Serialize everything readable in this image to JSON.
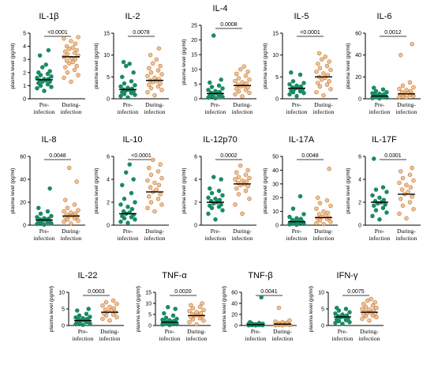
{
  "figure": {
    "colors": {
      "pre": "#1a8a66",
      "during": "#eab98c",
      "during_edge": "#cc7f35",
      "axis": "#000000"
    }
  },
  "chart_data": [
    {
      "type": "scatter",
      "title": "IL-1β",
      "ylabel": "plasma level (pg/ml)",
      "ylim": [
        0,
        5
      ],
      "yticks": [
        "0",
        "1",
        "2",
        "3",
        "4",
        "5"
      ],
      "categories": [
        "Pre-\ninfection",
        "During-\ninfection"
      ],
      "p_value": "<0.0001",
      "median": [
        1.45,
        3.2
      ],
      "series": [
        {
          "values": [
            0.6,
            0.8,
            0.9,
            1.0,
            1.1,
            1.2,
            1.3,
            1.3,
            1.4,
            1.4,
            1.5,
            1.5,
            1.6,
            1.7,
            1.8,
            1.9,
            2.0,
            2.1,
            2.4,
            2.6,
            3.3,
            3.7
          ]
        },
        {
          "values": [
            1.3,
            1.6,
            1.8,
            2.0,
            2.2,
            2.4,
            2.5,
            2.7,
            2.8,
            2.9,
            3.0,
            3.1,
            3.2,
            3.3,
            3.4,
            3.5,
            3.6,
            3.7,
            3.8,
            3.9,
            4.0,
            4.2,
            4.4,
            4.6,
            4.7
          ]
        }
      ]
    },
    {
      "type": "scatter",
      "title": "IL-2",
      "ylabel": "plasma level (pg/ml)",
      "ylim": [
        0,
        15
      ],
      "yticks": [
        "0",
        "5",
        "10",
        "15"
      ],
      "categories": [
        "Pre-\ninfection",
        "During-\ninfection"
      ],
      "p_value": "0.0078",
      "median": [
        2.1,
        4.2
      ],
      "series": [
        {
          "values": [
            0.3,
            0.6,
            0.9,
            1.1,
            1.3,
            1.5,
            1.7,
            1.9,
            2.0,
            2.1,
            2.3,
            2.5,
            2.8,
            3.1,
            3.5,
            4.0,
            5.0,
            6.0,
            7.5,
            8.0,
            8.4
          ]
        },
        {
          "values": [
            0.8,
            1.5,
            2.0,
            2.4,
            2.8,
            3.2,
            3.5,
            3.8,
            4.0,
            4.2,
            4.5,
            4.8,
            5.2,
            5.6,
            6.0,
            6.5,
            7.0,
            7.5,
            8.1,
            9.0,
            10.0,
            11.5
          ]
        }
      ]
    },
    {
      "type": "scatter",
      "title": "IL-4",
      "ylabel": "plasma level (pg/ml)",
      "ylim": [
        0,
        25
      ],
      "yticks": [
        "0",
        "5",
        "10",
        "15",
        "20",
        "25"
      ],
      "categories": [
        "Pre-\ninfection",
        "During-\ninfection"
      ],
      "p_value": "0.0008",
      "median": [
        1.8,
        4.5
      ],
      "series": [
        {
          "values": [
            0.2,
            0.4,
            0.6,
            0.8,
            1.0,
            1.2,
            1.4,
            1.6,
            1.8,
            2.0,
            2.3,
            2.6,
            3.0,
            3.5,
            4.0,
            4.5,
            5.5,
            6.5,
            21.5
          ]
        },
        {
          "values": [
            0.8,
            1.5,
            2.0,
            2.5,
            3.0,
            3.4,
            3.8,
            4.2,
            4.5,
            4.8,
            5.2,
            5.6,
            6.0,
            6.5,
            7.0,
            7.8,
            8.5,
            9.2,
            10.0,
            11.0
          ]
        }
      ]
    },
    {
      "type": "scatter",
      "title": "IL-5",
      "ylabel": "plasma level (pg/ml)",
      "ylim": [
        0,
        15
      ],
      "yticks": [
        "0",
        "5",
        "10",
        "15"
      ],
      "categories": [
        "Pre-\ninfection",
        "During-\ninfection"
      ],
      "p_value": "<0.0001",
      "median": [
        2.4,
        5.0
      ],
      "series": [
        {
          "values": [
            0.6,
            1.0,
            1.3,
            1.5,
            1.7,
            1.9,
            2.1,
            2.3,
            2.5,
            2.6,
            2.8,
            3.0,
            3.3,
            3.6,
            4.0,
            5.5,
            6.0
          ]
        },
        {
          "values": [
            0.8,
            1.5,
            2.2,
            2.8,
            3.2,
            3.6,
            4.0,
            4.4,
            4.8,
            5.0,
            5.4,
            5.8,
            6.2,
            6.6,
            7.0,
            7.5,
            8.0,
            8.5,
            9.0,
            9.6,
            10.4
          ]
        }
      ]
    },
    {
      "type": "scatter",
      "title": "IL-6",
      "ylabel": "plasma level (pg/ml)",
      "ylim": [
        0,
        60
      ],
      "yticks": [
        "0",
        "20",
        "40",
        "60"
      ],
      "categories": [
        "Pre-\ninfection",
        "During-\ninfection"
      ],
      "p_value": "0.0012",
      "median": [
        2.5,
        4.5
      ],
      "series": [
        {
          "values": [
            0.3,
            0.6,
            1.0,
            1.4,
            1.8,
            2.2,
            2.5,
            2.8,
            3.2,
            3.6,
            4.0,
            4.5,
            5.0,
            6.0,
            7.0,
            8.5,
            10.0
          ]
        },
        {
          "values": [
            1.0,
            1.8,
            2.5,
            3.0,
            3.5,
            4.0,
            4.5,
            5.0,
            5.5,
            6.0,
            7.0,
            8.0,
            9.0,
            10.5,
            12.0,
            15.0,
            40.0,
            50.0
          ]
        }
      ]
    },
    {
      "type": "scatter",
      "title": "IL-8",
      "ylabel": "plasma level (pg/ml)",
      "ylim": [
        0,
        60
      ],
      "yticks": [
        "0",
        "20",
        "40",
        "60"
      ],
      "categories": [
        "Pre-\ninfection",
        "During-\ninfection"
      ],
      "p_value": "0.0048",
      "median": [
        4.5,
        8.0
      ],
      "series": [
        {
          "values": [
            0.5,
            1.0,
            1.5,
            2.0,
            2.5,
            3.0,
            3.5,
            4.0,
            4.5,
            5.0,
            5.5,
            6.0,
            7.0,
            8.0,
            10.0,
            12.0,
            15.0,
            32.0
          ]
        },
        {
          "values": [
            1.5,
            3.0,
            4.0,
            5.0,
            6.0,
            7.0,
            7.5,
            8.0,
            8.5,
            9.0,
            10.0,
            11.0,
            12.0,
            13.0,
            15.0,
            18.0,
            22.0,
            38.0,
            50.0
          ]
        }
      ]
    },
    {
      "type": "scatter",
      "title": "IL-10",
      "ylabel": "plasma level (pg/ml)",
      "ylim": [
        0,
        6
      ],
      "yticks": [
        "0",
        "2",
        "4",
        "6"
      ],
      "categories": [
        "Pre-\ninfection",
        "During-\ninfection"
      ],
      "p_value": "<0.0001",
      "median": [
        1.0,
        2.9
      ],
      "series": [
        {
          "values": [
            0.2,
            0.3,
            0.5,
            0.6,
            0.7,
            0.8,
            0.9,
            1.0,
            1.1,
            1.2,
            1.4,
            1.6,
            1.8,
            2.0,
            2.3,
            2.8,
            3.5,
            4.0,
            4.6,
            5.3
          ]
        },
        {
          "values": [
            1.2,
            1.5,
            1.8,
            2.0,
            2.3,
            2.5,
            2.7,
            2.9,
            3.1,
            3.3,
            3.5,
            3.7,
            3.9,
            4.1,
            4.4,
            4.7,
            5.0,
            5.3,
            5.7
          ]
        }
      ]
    },
    {
      "type": "scatter",
      "title": "IL-12p70",
      "ylabel": "plasma level (pg/ml)",
      "ylim": [
        0,
        6
      ],
      "yticks": [
        "0",
        "2",
        "4",
        "6"
      ],
      "categories": [
        "Pre-\ninfection",
        "During-\ninfection"
      ],
      "p_value": "0.0002",
      "median": [
        2.0,
        3.6
      ],
      "series": [
        {
          "values": [
            0.5,
            1.0,
            1.3,
            1.5,
            1.6,
            1.7,
            1.8,
            1.9,
            2.0,
            2.1,
            2.2,
            2.3,
            2.4,
            2.6,
            2.8,
            3.0,
            3.2,
            4.0,
            4.2
          ]
        },
        {
          "values": [
            1.0,
            1.8,
            2.3,
            2.7,
            3.0,
            3.2,
            3.4,
            3.5,
            3.6,
            3.7,
            3.8,
            3.9,
            4.0,
            4.1,
            4.2,
            4.4,
            4.6,
            4.8,
            5.2
          ]
        }
      ]
    },
    {
      "type": "scatter",
      "title": "IL-17A",
      "ylabel": "plasma level (pg/ml)",
      "ylim": [
        0,
        50
      ],
      "yticks": [
        "0",
        "10",
        "20",
        "30",
        "40",
        "50"
      ],
      "categories": [
        "Pre-\ninfection",
        "During-\ninfection"
      ],
      "p_value": "0.0048",
      "median": [
        2.5,
        5.5
      ],
      "series": [
        {
          "values": [
            0.3,
            0.6,
            1.0,
            1.4,
            1.8,
            2.2,
            2.5,
            2.8,
            3.2,
            3.8,
            4.5,
            5.0,
            6.0,
            8.0,
            12.0,
            21.0
          ]
        },
        {
          "values": [
            0.8,
            1.5,
            2.5,
            3.5,
            4.5,
            5.0,
            5.5,
            6.0,
            7.0,
            8.0,
            9.0,
            10.0,
            12.0,
            14.0,
            16.0,
            18.0,
            20.0,
            41.0
          ]
        }
      ]
    },
    {
      "type": "scatter",
      "title": "IL-17F",
      "ylabel": "plasma level (pg/ml)",
      "ylim": [
        0,
        6
      ],
      "yticks": [
        "0",
        "2",
        "4",
        "6"
      ],
      "categories": [
        "Pre-\ninfection",
        "During-\ninfection"
      ],
      "p_value": "0.0301",
      "median": [
        2.0,
        2.7
      ],
      "series": [
        {
          "values": [
            0.5,
            0.8,
            1.1,
            1.3,
            1.5,
            1.7,
            1.8,
            1.9,
            2.0,
            2.1,
            2.2,
            2.4,
            2.6,
            2.9,
            3.1,
            3.3,
            5.8
          ]
        },
        {
          "values": [
            0.6,
            1.0,
            1.4,
            1.7,
            2.0,
            2.3,
            2.5,
            2.7,
            2.9,
            3.1,
            3.3,
            3.5,
            3.7,
            3.9,
            4.1,
            4.4,
            4.7,
            5.0
          ]
        }
      ]
    },
    {
      "type": "scatter",
      "title": "IL-22",
      "ylabel": "plasma level (pg/ml)",
      "ylim": [
        0,
        10
      ],
      "yticks": [
        "0",
        "5",
        "10"
      ],
      "categories": [
        "Pre-\ninfection",
        "During-\ninfection"
      ],
      "p_value": "0.0003",
      "median": [
        1.5,
        4.0
      ],
      "series": [
        {
          "values": [
            0.2,
            0.4,
            0.6,
            0.8,
            1.0,
            1.2,
            1.4,
            1.5,
            1.6,
            1.8,
            2.0,
            2.2,
            2.4,
            2.6,
            3.0,
            3.5,
            4.5,
            5.0
          ]
        },
        {
          "values": [
            1.5,
            2.0,
            2.5,
            3.0,
            3.3,
            3.6,
            4.0,
            4.2,
            4.5,
            4.8,
            5.2,
            5.6,
            6.0,
            6.5,
            7.0,
            7.5
          ]
        }
      ]
    },
    {
      "type": "scatter",
      "title": "TNF-α",
      "ylabel": "plasma level (pg/ml)",
      "ylim": [
        0,
        15
      ],
      "yticks": [
        "0",
        "5",
        "10",
        "15"
      ],
      "categories": [
        "Pre-\ninfection",
        "During-\ninfection"
      ],
      "p_value": "0.0020",
      "median": [
        1.5,
        4.5
      ],
      "series": [
        {
          "values": [
            0.2,
            0.4,
            0.6,
            0.8,
            1.0,
            1.2,
            1.4,
            1.5,
            1.6,
            1.8,
            2.0,
            2.3,
            2.6,
            3.0,
            3.5,
            4.5,
            5.5,
            7.5,
            8.3
          ]
        },
        {
          "values": [
            0.5,
            1.5,
            2.2,
            2.8,
            3.3,
            3.8,
            4.2,
            4.5,
            4.8,
            5.2,
            5.6,
            6.0,
            6.5,
            7.0,
            7.8,
            8.5,
            9.2,
            10.0
          ]
        }
      ]
    },
    {
      "type": "scatter",
      "title": "TNF-β",
      "ylabel": "plasma level (pg/ml)",
      "ylim": [
        0,
        60
      ],
      "yticks": [
        "0",
        "20",
        "40",
        "60"
      ],
      "categories": [
        "Pre-\ninfection",
        "During-\ninfection"
      ],
      "p_value": "0.0041",
      "median": [
        1.5,
        2.5
      ],
      "series": [
        {
          "values": [
            0.2,
            0.4,
            0.6,
            0.8,
            1.0,
            1.2,
            1.4,
            1.5,
            1.6,
            1.8,
            2.0,
            2.3,
            2.6,
            3.0,
            3.5,
            4.5,
            6.0,
            51.0
          ]
        },
        {
          "values": [
            0.3,
            0.6,
            1.0,
            1.4,
            1.8,
            2.0,
            2.5,
            3.0,
            3.5,
            4.0,
            5.0,
            6.0,
            7.0,
            9.0,
            32.0
          ]
        }
      ]
    },
    {
      "type": "scatter",
      "title": "IFN-γ",
      "ylabel": "plasma level (pg/ml)",
      "ylim": [
        0,
        10
      ],
      "yticks": [
        "0",
        "5",
        "10"
      ],
      "categories": [
        "Pre-\ninfection",
        "During-\ninfection"
      ],
      "p_value": "0.0075",
      "median": [
        2.6,
        4.0
      ],
      "series": [
        {
          "values": [
            0.5,
            0.8,
            1.0,
            1.3,
            1.6,
            1.9,
            2.2,
            2.5,
            2.6,
            2.8,
            3.0,
            3.3,
            3.6,
            4.0,
            4.5,
            5.0,
            5.3
          ]
        },
        {
          "values": [
            1.5,
            2.0,
            2.5,
            2.8,
            3.0,
            3.3,
            3.6,
            3.8,
            4.0,
            4.2,
            4.5,
            4.8,
            5.0,
            5.3,
            5.6,
            6.0,
            6.5,
            7.0,
            7.5,
            8.0
          ]
        }
      ]
    }
  ]
}
